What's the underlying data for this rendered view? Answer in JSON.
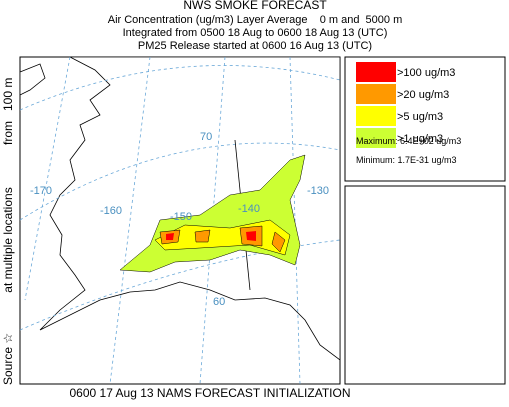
{
  "header": {
    "title": "NWS SMOKE FORECAST",
    "lines": [
      "Air Concentration (ug/m3) Layer Average    0 m and  5000 m",
      "Integrated from 0500 18 Aug to 0600 18 Aug 13 (UTC)",
      "PM25 Release started at 0600 16 Aug 13 (UTC)"
    ]
  },
  "source_label": [
    "Source ☆",
    "at multiple locations",
    "from   100 m"
  ],
  "legend": {
    "items": [
      {
        "label": ">100 ug/m3",
        "color": "#ff0000"
      },
      {
        "label": ">20 ug/m3",
        "color": "#ff9900"
      },
      {
        "label": ">5 ug/m3",
        "color": "#ffff00"
      },
      {
        "label": ">1 ug/m3",
        "color": "#ccff33"
      }
    ],
    "maximum": "Maximum: 6.4E+02 ug/m3",
    "minimum": "Minimum: 1.7E-31 ug/m3"
  },
  "map_labels": [
    "-170",
    "-160",
    "-150",
    "-140",
    "-130",
    "70",
    "60"
  ],
  "footer": "0600 17 Aug 13 NAMS FORECAST INITIALIZATION"
}
